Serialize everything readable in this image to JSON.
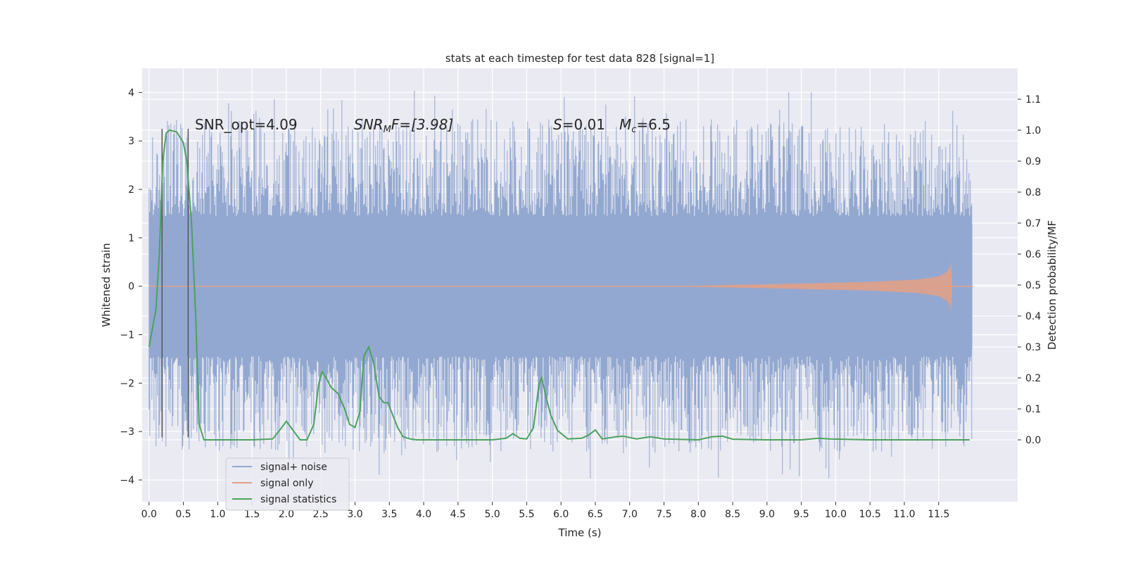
{
  "chart_data": {
    "type": "line",
    "title": "stats at each timestep for test data 828 [signal=1]",
    "xlabel": "Time (s)",
    "ylabel": "Whitened strain",
    "ylabel_right": "Detection probability/MF",
    "xlim": [
      -0.1,
      12.65
    ],
    "ylim": [
      -4.45,
      4.5
    ],
    "ylim_right": [
      -0.2,
      1.2
    ],
    "x_ticks": [
      0.0,
      0.5,
      1.0,
      1.5,
      2.0,
      2.5,
      3.0,
      3.5,
      4.0,
      4.5,
      5.0,
      5.5,
      6.0,
      6.5,
      7.0,
      7.5,
      8.0,
      8.5,
      9.0,
      9.5,
      10.0,
      10.5,
      11.0,
      11.5
    ],
    "x_tick_labels": [
      "0.0",
      "0.5",
      "1.0",
      "1.5",
      "2.0",
      "2.5",
      "3.0",
      "3.5",
      "4.0",
      "4.5",
      "5.0",
      "5.5",
      "6.0",
      "6.5",
      "7.0",
      "7.5",
      "8.0",
      "8.5",
      "9.0",
      "9.5",
      "10.0",
      "10.5",
      "11.0",
      "11.5"
    ],
    "y_ticks": [
      4,
      3,
      2,
      1,
      0,
      -1,
      -2,
      -3,
      -4
    ],
    "y_tick_labels": [
      "4",
      "3",
      "2",
      "1",
      "0",
      "−1",
      "−2",
      "−3",
      "−4"
    ],
    "y_right_ticks": [
      1.1,
      1.0,
      0.9,
      0.8,
      0.7,
      0.6,
      0.5,
      0.4,
      0.3,
      0.2,
      0.1,
      0.0
    ],
    "y_right_tick_labels": [
      "1.1",
      "1.0",
      "0.9",
      "0.8",
      "0.7",
      "0.6",
      "0.5",
      "0.4",
      "0.3",
      "0.2",
      "0.1",
      "0.0"
    ],
    "grid": true,
    "legend_position": "lower-left",
    "annotations": {
      "snr_opt": "SNR_opt=4.09",
      "snr_mf_base": "SNR",
      "snr_mf_sub": "M",
      "snr_mf_rest": "F=[3.98]",
      "s_symbol": "S",
      "s_value": "=0.01",
      "mc_base": "M",
      "mc_sub": "c",
      "mc_value": "=6.5"
    },
    "vertical_lines": [
      0.19,
      0.57
    ],
    "series": [
      {
        "name": "signal+ noise",
        "color": "#93a8d0",
        "t_end": 11.99,
        "core_amplitude": 1.3,
        "burst_max": 4.1,
        "burst_min": -4.0
      },
      {
        "name": "signal only",
        "color": "#e0a088",
        "points": [
          [
            0.0,
            0.0
          ],
          [
            7.5,
            0.0
          ],
          [
            9.0,
            0.04
          ],
          [
            10.5,
            0.09
          ],
          [
            11.2,
            0.14
          ],
          [
            11.5,
            0.2
          ],
          [
            11.62,
            0.3
          ],
          [
            11.67,
            0.4
          ],
          [
            11.68,
            -0.55
          ],
          [
            11.7,
            0.0
          ],
          [
            12.0,
            0.0
          ]
        ]
      },
      {
        "name": "signal statistics",
        "color": "#4ca25d",
        "points": [
          [
            0.0,
            0.3
          ],
          [
            0.1,
            0.42
          ],
          [
            0.15,
            0.6
          ],
          [
            0.2,
            0.9
          ],
          [
            0.25,
            0.99
          ],
          [
            0.3,
            1.0
          ],
          [
            0.4,
            0.995
          ],
          [
            0.5,
            0.96
          ],
          [
            0.55,
            0.9
          ],
          [
            0.62,
            0.7
          ],
          [
            0.68,
            0.4
          ],
          [
            0.73,
            0.05
          ],
          [
            0.8,
            0.0
          ],
          [
            1.0,
            0.0
          ],
          [
            1.5,
            0.0
          ],
          [
            1.8,
            0.003
          ],
          [
            1.9,
            0.03
          ],
          [
            2.0,
            0.06
          ],
          [
            2.1,
            0.03
          ],
          [
            2.2,
            0.0
          ],
          [
            2.3,
            0.0
          ],
          [
            2.4,
            0.05
          ],
          [
            2.47,
            0.18
          ],
          [
            2.52,
            0.22
          ],
          [
            2.58,
            0.2
          ],
          [
            2.65,
            0.17
          ],
          [
            2.75,
            0.15
          ],
          [
            2.85,
            0.1
          ],
          [
            2.92,
            0.05
          ],
          [
            3.0,
            0.04
          ],
          [
            3.07,
            0.09
          ],
          [
            3.13,
            0.27
          ],
          [
            3.2,
            0.3
          ],
          [
            3.27,
            0.25
          ],
          [
            3.35,
            0.14
          ],
          [
            3.42,
            0.12
          ],
          [
            3.48,
            0.12
          ],
          [
            3.55,
            0.08
          ],
          [
            3.62,
            0.04
          ],
          [
            3.7,
            0.01
          ],
          [
            3.8,
            0.003
          ],
          [
            3.9,
            0.0
          ],
          [
            4.5,
            0.0
          ],
          [
            5.0,
            0.0
          ],
          [
            5.2,
            0.005
          ],
          [
            5.3,
            0.02
          ],
          [
            5.4,
            0.005
          ],
          [
            5.5,
            0.003
          ],
          [
            5.6,
            0.04
          ],
          [
            5.68,
            0.18
          ],
          [
            5.72,
            0.2
          ],
          [
            5.78,
            0.14
          ],
          [
            5.85,
            0.08
          ],
          [
            5.95,
            0.03
          ],
          [
            6.1,
            0.003
          ],
          [
            6.3,
            0.005
          ],
          [
            6.4,
            0.015
          ],
          [
            6.5,
            0.032
          ],
          [
            6.6,
            0.003
          ],
          [
            6.8,
            0.01
          ],
          [
            6.9,
            0.012
          ],
          [
            7.1,
            0.003
          ],
          [
            7.3,
            0.01
          ],
          [
            7.5,
            0.003
          ],
          [
            8.0,
            0.0
          ],
          [
            8.2,
            0.01
          ],
          [
            8.35,
            0.012
          ],
          [
            8.5,
            0.002
          ],
          [
            9.0,
            0.0
          ],
          [
            9.5,
            0.0
          ],
          [
            9.75,
            0.005
          ],
          [
            9.9,
            0.003
          ],
          [
            10.5,
            0.0
          ],
          [
            11.0,
            0.0
          ],
          [
            11.5,
            0.0
          ],
          [
            11.95,
            0.0
          ]
        ]
      }
    ]
  }
}
